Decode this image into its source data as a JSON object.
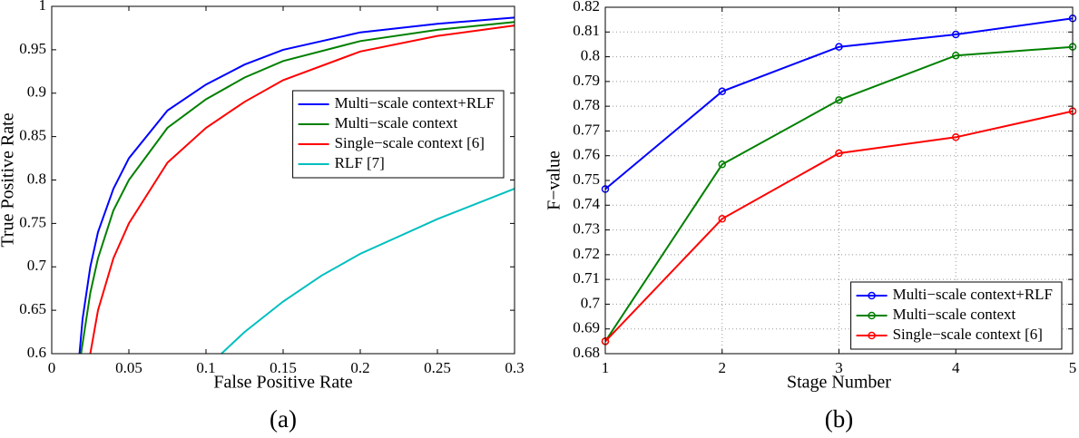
{
  "chart_data": [
    {
      "type": "line",
      "caption": "(a)",
      "xlabel": "False Positive Rate",
      "ylabel": "True Positive Rate",
      "xlim": [
        0,
        0.3
      ],
      "xticks": [
        0,
        0.05,
        0.1,
        0.15,
        0.2,
        0.25,
        0.3
      ],
      "ylim": [
        0.6,
        1
      ],
      "yticks": [
        0.6,
        0.65,
        0.7,
        0.75,
        0.8,
        0.85,
        0.9,
        0.95,
        1
      ],
      "grid": false,
      "markers": false,
      "legend": "right",
      "series": [
        {
          "name": "Multi−scale context+RLF",
          "color": "#0000ff",
          "x": [
            0.018,
            0.02,
            0.025,
            0.03,
            0.04,
            0.05,
            0.075,
            0.1,
            0.125,
            0.15,
            0.2,
            0.25,
            0.3
          ],
          "values": [
            0.6,
            0.64,
            0.7,
            0.74,
            0.79,
            0.825,
            0.88,
            0.91,
            0.933,
            0.95,
            0.97,
            0.98,
            0.987
          ]
        },
        {
          "name": "Multi−scale context",
          "color": "#008000",
          "x": [
            0.019,
            0.025,
            0.03,
            0.04,
            0.05,
            0.075,
            0.1,
            0.125,
            0.15,
            0.2,
            0.25,
            0.3
          ],
          "values": [
            0.6,
            0.67,
            0.71,
            0.765,
            0.8,
            0.86,
            0.893,
            0.918,
            0.937,
            0.96,
            0.973,
            0.982
          ]
        },
        {
          "name": "Single−scale context [6]",
          "color": "#ff0000",
          "x": [
            0.025,
            0.03,
            0.04,
            0.05,
            0.075,
            0.1,
            0.125,
            0.15,
            0.2,
            0.25,
            0.3
          ],
          "values": [
            0.6,
            0.65,
            0.71,
            0.75,
            0.82,
            0.86,
            0.89,
            0.915,
            0.948,
            0.966,
            0.978
          ]
        },
        {
          "name": "RLF [7]",
          "color": "#00bfbf",
          "x": [
            0.11,
            0.125,
            0.15,
            0.175,
            0.2,
            0.25,
            0.3
          ],
          "values": [
            0.6,
            0.625,
            0.66,
            0.69,
            0.715,
            0.755,
            0.79
          ]
        }
      ]
    },
    {
      "type": "line",
      "caption": "(b)",
      "xlabel": "Stage Number",
      "ylabel": "F−value",
      "xlim": [
        1,
        5
      ],
      "xticks": [
        1,
        2,
        3,
        4,
        5
      ],
      "ylim": [
        0.68,
        0.82
      ],
      "yticks": [
        0.68,
        0.69,
        0.7,
        0.71,
        0.72,
        0.73,
        0.74,
        0.75,
        0.76,
        0.77,
        0.78,
        0.79,
        0.8,
        0.81,
        0.82
      ],
      "grid": true,
      "markers": true,
      "legend": "lower right",
      "x": [
        1,
        2,
        3,
        4,
        5
      ],
      "series": [
        {
          "name": "Multi−scale context+RLF",
          "color": "#0000ff",
          "values": [
            0.7465,
            0.786,
            0.804,
            0.809,
            0.8155
          ]
        },
        {
          "name": "Multi−scale context",
          "color": "#008000",
          "values": [
            0.685,
            0.7565,
            0.7825,
            0.8005,
            0.804
          ]
        },
        {
          "name": "Single−scale context [6]",
          "color": "#ff0000",
          "values": [
            0.685,
            0.7345,
            0.761,
            0.7675,
            0.778
          ]
        }
      ]
    }
  ]
}
